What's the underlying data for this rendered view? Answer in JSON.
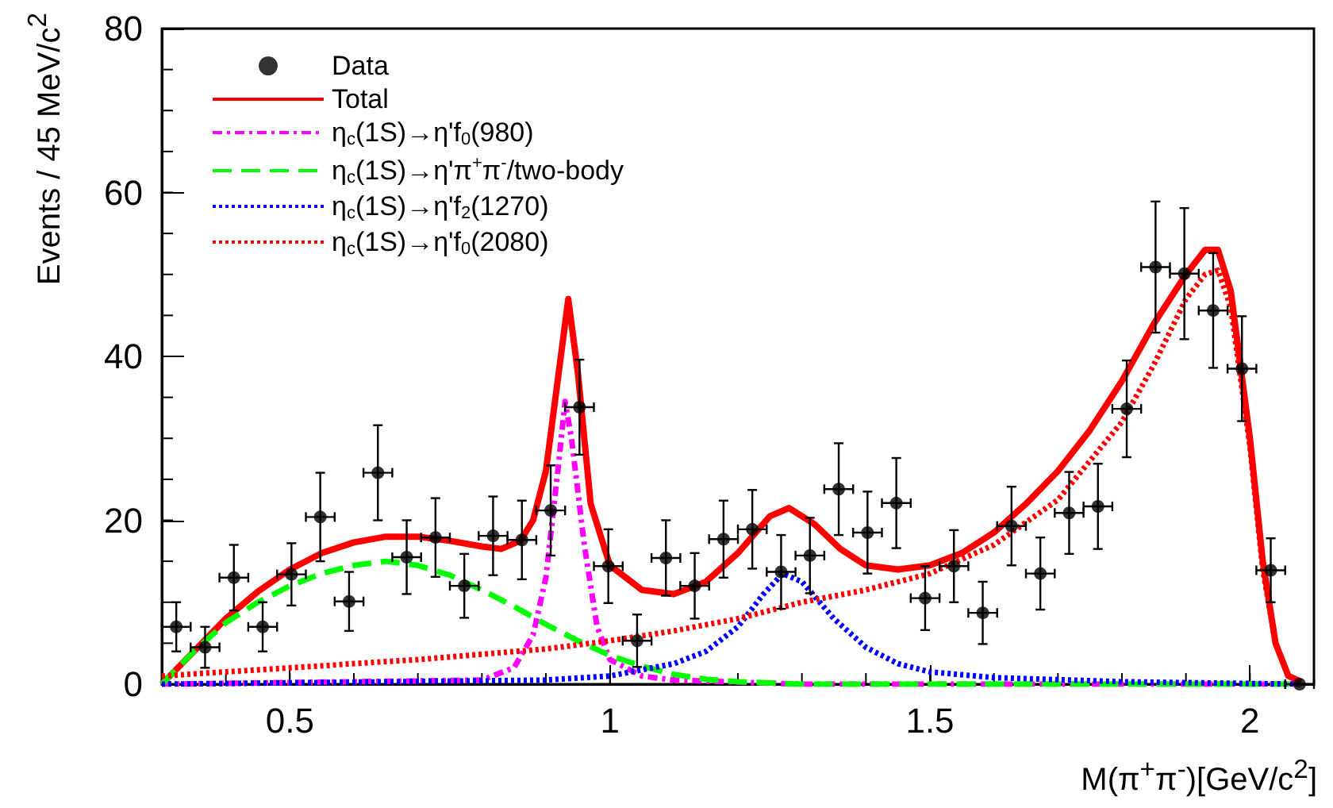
{
  "chart_data": {
    "type": "line",
    "xlabel": "M(π$^{+}$π$^{-}$)[GeV/c$^{2}$]",
    "ylabel": "Events / 45 MeV/c$^{2}$",
    "xlim": [
      0.3,
      2.1
    ],
    "xticks": [
      0.5,
      1,
      1.5,
      2
    ],
    "ylim": [
      0,
      80
    ],
    "yticks": [
      0,
      20,
      40,
      60,
      80
    ],
    "grid": false,
    "legend": "top left",
    "series": [
      {
        "name": "Data",
        "type": "scatter",
        "color": "#000000",
        "marker": "circle",
        "x": [
          0.3225,
          0.3675,
          0.4125,
          0.4575,
          0.5025,
          0.5475,
          0.5925,
          0.6375,
          0.6825,
          0.7275,
          0.7725,
          0.8175,
          0.8625,
          0.9075,
          0.9525,
          0.9975,
          1.0425,
          1.0875,
          1.1325,
          1.1775,
          1.2225,
          1.2675,
          1.3125,
          1.3575,
          1.4025,
          1.4475,
          1.4925,
          1.5375,
          1.5825,
          1.6275,
          1.6725,
          1.7175,
          1.7625,
          1.8075,
          1.8525,
          1.8975,
          1.9425,
          1.9875,
          2.0325,
          2.0775
        ],
        "values": [
          7,
          4.5,
          13,
          7,
          13.4,
          20.4,
          10.1,
          25.8,
          15.5,
          17.9,
          12,
          18.1,
          17.6,
          21.2,
          33.8,
          14.4,
          5.3,
          15.4,
          12,
          17.7,
          18.9,
          13.7,
          15.7,
          23.8,
          18.5,
          22.1,
          10.5,
          14.4,
          8.7,
          19.3,
          13.5,
          20.9,
          21.7,
          33.6,
          50.9,
          50.1,
          45.6,
          38.5,
          13.9,
          0
        ],
        "errors": [
          3,
          2.5,
          4,
          3,
          3.8,
          5.4,
          3.6,
          5.8,
          4.5,
          4.8,
          3.9,
          4.8,
          4.8,
          5.5,
          5.8,
          4.5,
          3.2,
          4.6,
          4,
          4.7,
          4.8,
          4.5,
          4.6,
          5.6,
          5,
          5.5,
          3.9,
          4.4,
          3.8,
          4.8,
          4.4,
          5,
          5.2,
          5.9,
          8,
          8,
          7,
          6.4,
          3.9,
          null
        ],
        "xerrors": [
          0.0225,
          0.0225,
          0.0225,
          0.0225,
          0.0225,
          0.0225,
          0.0225,
          0.0225,
          0.0225,
          0.0225,
          0.0225,
          0.0225,
          0.0225,
          0.0225,
          0.0225,
          0.0225,
          0.0225,
          0.0225,
          0.0225,
          0.0225,
          0.0225,
          0.0225,
          0.0225,
          0.0225,
          0.0225,
          0.0225,
          0.0225,
          0.0225,
          0.0225,
          0.0225,
          0.0225,
          0.0225,
          0.0225,
          0.0225,
          0.0225,
          0.0225,
          0.0225,
          0.0225,
          0.0225,
          0.0225
        ]
      },
      {
        "name": "Total",
        "type": "line",
        "color": "#ff0000",
        "line_style": "solid",
        "marker": "none",
        "x": [
          0.3,
          0.35,
          0.4,
          0.45,
          0.5,
          0.55,
          0.6,
          0.65,
          0.7,
          0.75,
          0.8,
          0.83,
          0.86,
          0.88,
          0.9,
          0.92,
          0.935,
          0.95,
          0.97,
          1.0,
          1.05,
          1.1,
          1.15,
          1.2,
          1.25,
          1.28,
          1.32,
          1.36,
          1.4,
          1.45,
          1.5,
          1.55,
          1.6,
          1.65,
          1.7,
          1.75,
          1.8,
          1.85,
          1.9,
          1.93,
          1.95,
          1.97,
          2.0,
          2.02,
          2.04,
          2.06,
          2.08
        ],
        "values": [
          0,
          4,
          8,
          11.3,
          14,
          16,
          17.3,
          18,
          18,
          17.5,
          16.8,
          16.5,
          17.5,
          20,
          26,
          38,
          47,
          38,
          22,
          14.5,
          11.5,
          11,
          12.5,
          16,
          20.5,
          21.5,
          19.5,
          16.5,
          14.5,
          14,
          14.5,
          16,
          18.5,
          22,
          26,
          31,
          37,
          44,
          50,
          53,
          53,
          48,
          30,
          15,
          5,
          1,
          0.3
        ]
      },
      {
        "name": "η$_{c}$(1S)→η'f$_{0}$(980)",
        "type": "line",
        "color": "#ff00ff",
        "line_style": "dashdot",
        "marker": "none",
        "x": [
          0.3,
          0.8,
          0.85,
          0.88,
          0.9,
          0.92,
          0.93,
          0.94,
          0.96,
          0.98,
          1.0,
          1.05,
          1.1,
          1.3,
          2.08
        ],
        "values": [
          0,
          0.5,
          2,
          6,
          13,
          27,
          34.5,
          30,
          17,
          7,
          3,
          1,
          0.5,
          0,
          0
        ]
      },
      {
        "name": "η$_{c}$(1S)→η'π$^{+}$π$^{-}$/two-body",
        "type": "line",
        "color": "#00ff00",
        "line_style": "dashed",
        "marker": "none",
        "x": [
          0.3,
          0.35,
          0.4,
          0.45,
          0.5,
          0.55,
          0.6,
          0.65,
          0.7,
          0.75,
          0.8,
          0.85,
          0.9,
          0.95,
          1.0,
          1.05,
          1.1,
          1.15,
          1.2,
          1.3,
          2.08
        ],
        "values": [
          0,
          4,
          7.5,
          10,
          12,
          13.5,
          14.5,
          15,
          14.5,
          13.3,
          11.5,
          9.5,
          7.3,
          5.3,
          3.5,
          2.2,
          1.2,
          0.6,
          0.3,
          0,
          0
        ]
      },
      {
        "name": "η$_{c}$(1S)→η'f$_{2}$(1270)",
        "type": "line",
        "color": "#0000ff",
        "line_style": "dotted",
        "marker": "none",
        "x": [
          0.3,
          0.9,
          1.0,
          1.1,
          1.15,
          1.2,
          1.24,
          1.27,
          1.3,
          1.35,
          1.4,
          1.45,
          1.5,
          1.6,
          1.8,
          2.08
        ],
        "values": [
          0,
          0.5,
          1,
          2.5,
          4,
          7,
          11,
          13.5,
          12.5,
          8,
          4.5,
          2.5,
          1.5,
          0.8,
          0.3,
          0
        ]
      },
      {
        "name": "η$_{c}$(1S)→η'f$_{0}$(2080)",
        "type": "line",
        "color": "#ff0000",
        "line_style": "dotted",
        "marker": "none",
        "x": [
          0.3,
          0.5,
          0.7,
          0.9,
          1.0,
          1.1,
          1.2,
          1.3,
          1.4,
          1.5,
          1.6,
          1.7,
          1.8,
          1.85,
          1.9,
          1.93,
          1.95,
          1.97,
          2.0,
          2.02,
          2.04,
          2.06,
          2.08
        ],
        "values": [
          1,
          2,
          3,
          4.3,
          5.3,
          6.5,
          8,
          10,
          11.5,
          13.5,
          17,
          22.5,
          32,
          39,
          47,
          50,
          50.5,
          46,
          29,
          14,
          5,
          1,
          0.3
        ]
      }
    ]
  }
}
